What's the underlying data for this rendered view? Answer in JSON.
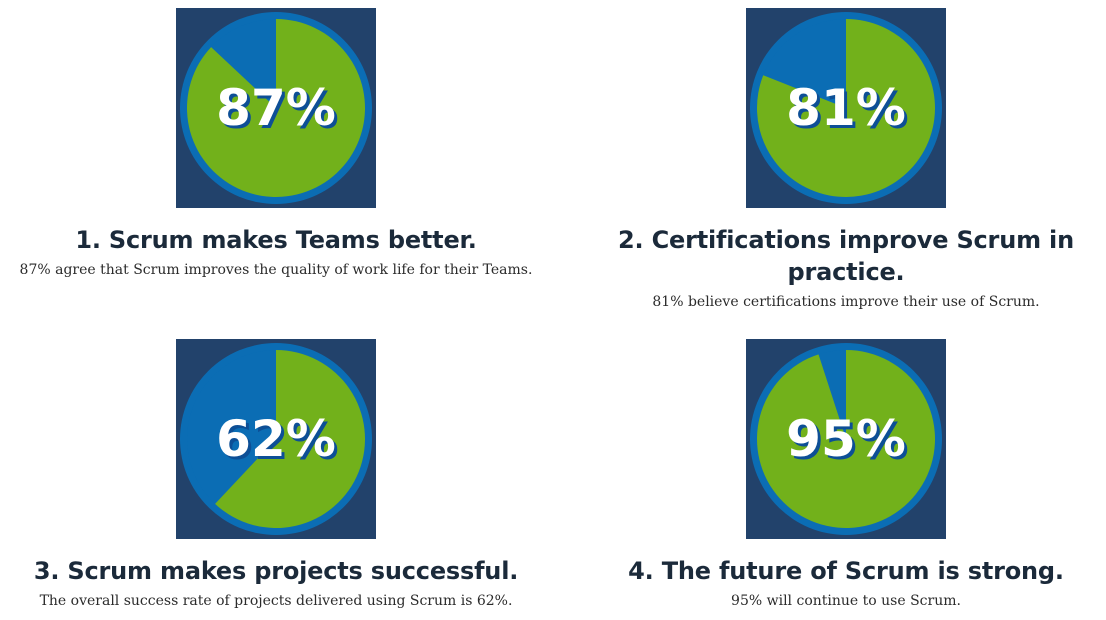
{
  "chart_data": [
    {
      "type": "pie",
      "values": [
        87,
        13
      ],
      "label": "87%",
      "title": "1. Scrum makes Teams better.",
      "description": "87% agree that Scrum improves the quality of work life for their Teams."
    },
    {
      "type": "pie",
      "values": [
        81,
        19
      ],
      "label": "81%",
      "title": "2. Certifications improve Scrum in practice.",
      "description": "81% believe certifications improve their use of Scrum."
    },
    {
      "type": "pie",
      "values": [
        62,
        38
      ],
      "label": "62%",
      "title": "3. Scrum makes projects successful.",
      "description": "The overall success rate of projects delivered using Scrum is 62%."
    },
    {
      "type": "pie",
      "values": [
        95,
        5
      ],
      "label": "95%",
      "title": "4. The future of Scrum is strong.",
      "description": "95% will continue to use Scrum."
    }
  ],
  "colors": {
    "tile_background": "#22426b",
    "ring": "#0b6db4",
    "slice_remainder": "#0b6db4",
    "slice_value": "#72b11b",
    "label_text": "#ffffff",
    "label_shadow": "#0d4f96"
  }
}
